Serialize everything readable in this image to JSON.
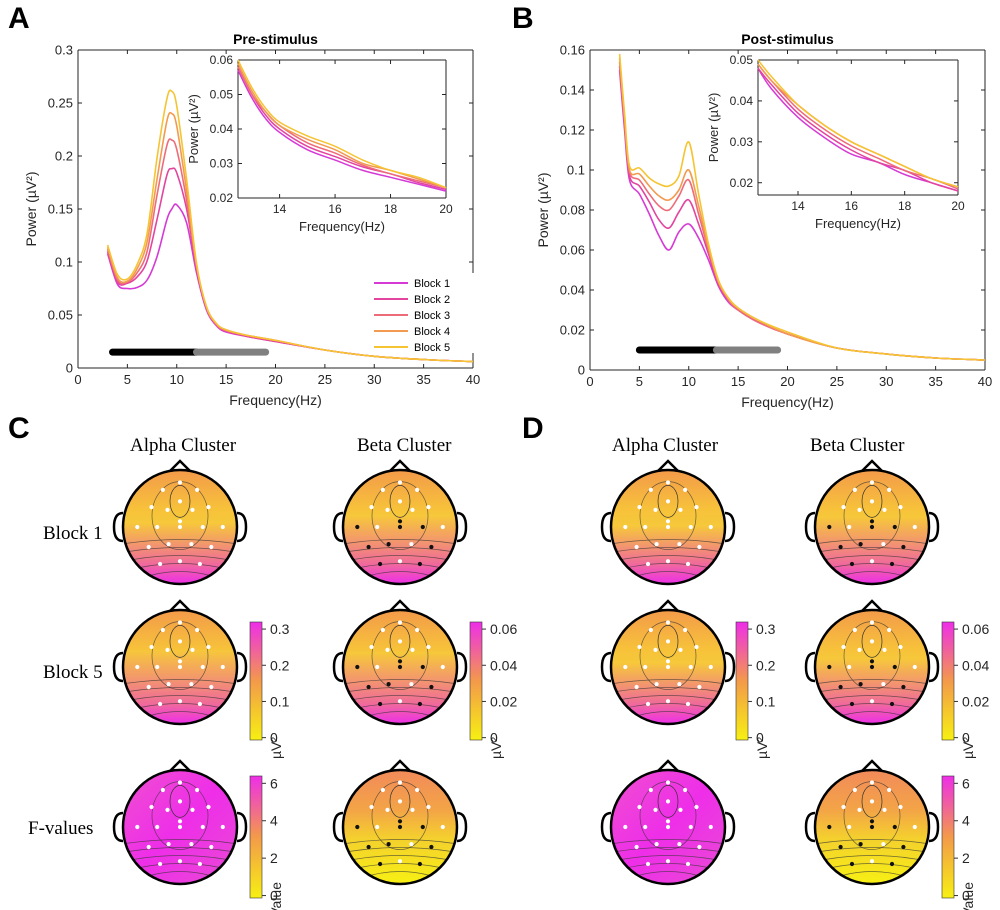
{
  "panels": {
    "a": "A",
    "b": "B",
    "c": "C",
    "d": "D"
  },
  "colors": {
    "block1": "#d63ad6",
    "block2": "#e3449e",
    "block3": "#ee6b7a",
    "block4": "#f29a4f",
    "block5": "#f5c433",
    "bar_alpha": "#000000",
    "bar_beta": "#808080",
    "map_low": "#f7f013",
    "map_mid": "#f39a4a",
    "map_high": "#ee2ee8"
  },
  "chart_data": [
    {
      "id": "A",
      "type": "line",
      "title": "Pre-stimulus",
      "xlabel": "Frequency(Hz)",
      "ylabel": "Power (µV²)",
      "xlim": [
        0,
        40
      ],
      "ylim": [
        0,
        0.3
      ],
      "x_ticks": [
        0,
        5,
        10,
        15,
        20,
        25,
        30,
        35,
        40
      ],
      "y_ticks": [
        0,
        0.05,
        0.1,
        0.15,
        0.2,
        0.25,
        0.3
      ],
      "y_tick_labels": [
        "0",
        "0.05",
        "0.1",
        "0.15",
        "0.2",
        "0.25",
        "0.3"
      ],
      "x": [
        3,
        4,
        5,
        6,
        7,
        8,
        9,
        9.5,
        10,
        11,
        12,
        13,
        14,
        15,
        17,
        20,
        25,
        30,
        35,
        40
      ],
      "series": [
        {
          "name": "Block 1",
          "values": [
            0.108,
            0.079,
            0.075,
            0.076,
            0.083,
            0.105,
            0.14,
            0.15,
            0.154,
            0.137,
            0.09,
            0.055,
            0.04,
            0.034,
            0.03,
            0.025,
            0.017,
            0.011,
            0.008,
            0.006
          ]
        },
        {
          "name": "Block 2",
          "values": [
            0.11,
            0.081,
            0.08,
            0.086,
            0.101,
            0.14,
            0.182,
            0.188,
            0.184,
            0.15,
            0.094,
            0.057,
            0.041,
            0.035,
            0.03,
            0.025,
            0.017,
            0.011,
            0.008,
            0.006
          ]
        },
        {
          "name": "Block 3",
          "values": [
            0.112,
            0.083,
            0.081,
            0.09,
            0.11,
            0.163,
            0.21,
            0.215,
            0.206,
            0.158,
            0.096,
            0.057,
            0.041,
            0.035,
            0.031,
            0.026,
            0.017,
            0.011,
            0.008,
            0.006
          ]
        },
        {
          "name": "Block 4",
          "values": [
            0.114,
            0.085,
            0.082,
            0.094,
            0.119,
            0.178,
            0.233,
            0.24,
            0.228,
            0.167,
            0.097,
            0.058,
            0.042,
            0.036,
            0.031,
            0.026,
            0.017,
            0.011,
            0.008,
            0.006
          ]
        },
        {
          "name": "Block 5",
          "values": [
            0.116,
            0.088,
            0.084,
            0.098,
            0.127,
            0.198,
            0.254,
            0.261,
            0.247,
            0.178,
            0.099,
            0.058,
            0.042,
            0.036,
            0.031,
            0.026,
            0.017,
            0.011,
            0.008,
            0.006
          ]
        }
      ],
      "bands": [
        {
          "name": "alpha",
          "from": 3.5,
          "to": 12
        },
        {
          "name": "beta",
          "from": 12,
          "to": 19
        }
      ],
      "band_y": 0.015,
      "legend": "bottom-right",
      "inset": {
        "xlabel": "Frequency(Hz)",
        "ylabel": "Power (µV²)",
        "xlim": [
          12.5,
          20
        ],
        "ylim": [
          0.02,
          0.06
        ],
        "x_ticks": [
          14,
          16,
          18,
          20
        ],
        "y_ticks": [
          0.02,
          0.03,
          0.04,
          0.05,
          0.06
        ],
        "y_tick_labels": [
          "0.02",
          "0.03",
          "0.04",
          "0.05",
          "0.06"
        ],
        "x": [
          12.5,
          13,
          13.5,
          14,
          15,
          16,
          17,
          18,
          19,
          20
        ],
        "series": [
          {
            "name": "Block 1",
            "values": [
              0.057,
              0.049,
              0.043,
              0.039,
              0.034,
              0.031,
              0.028,
              0.026,
              0.024,
              0.022
            ]
          },
          {
            "name": "Block 2",
            "values": [
              0.058,
              0.05,
              0.044,
              0.04,
              0.035,
              0.032,
              0.029,
              0.027,
              0.0245,
              0.0225
            ]
          },
          {
            "name": "Block 3",
            "values": [
              0.058,
              0.05,
              0.045,
              0.041,
              0.036,
              0.033,
              0.0295,
              0.027,
              0.025,
              0.023
            ]
          },
          {
            "name": "Block 4",
            "values": [
              0.059,
              0.051,
              0.045,
              0.041,
              0.037,
              0.034,
              0.03,
              0.028,
              0.0255,
              0.023
            ]
          },
          {
            "name": "Block 5",
            "values": [
              0.06,
              0.052,
              0.046,
              0.042,
              0.038,
              0.035,
              0.031,
              0.028,
              0.026,
              0.023
            ]
          }
        ]
      }
    },
    {
      "id": "B",
      "type": "line",
      "title": "Post-stimulus",
      "xlabel": "Frequency(Hz)",
      "ylabel": "Power (µV²)",
      "xlim": [
        0,
        40
      ],
      "ylim": [
        0,
        0.16
      ],
      "x_ticks": [
        0,
        5,
        10,
        15,
        20,
        25,
        30,
        35,
        40
      ],
      "y_ticks": [
        0,
        0.02,
        0.04,
        0.06,
        0.08,
        0.1,
        0.12,
        0.14,
        0.16
      ],
      "y_tick_labels": [
        "0",
        "0.02",
        "0.04",
        "0.06",
        "0.08",
        "0.1",
        "0.12",
        "0.14",
        "0.16"
      ],
      "x": [
        3,
        3.5,
        4,
        5,
        6,
        7,
        8,
        9,
        10,
        11,
        12,
        13,
        14,
        15,
        17,
        20,
        25,
        30,
        35,
        40
      ],
      "series": [
        {
          "name": "Block 1",
          "values": [
            0.15,
            0.12,
            0.095,
            0.088,
            0.078,
            0.067,
            0.06,
            0.069,
            0.073,
            0.066,
            0.055,
            0.042,
            0.034,
            0.03,
            0.024,
            0.018,
            0.011,
            0.008,
            0.006,
            0.005
          ]
        },
        {
          "name": "Block 2",
          "values": [
            0.152,
            0.122,
            0.097,
            0.092,
            0.084,
            0.075,
            0.071,
            0.079,
            0.085,
            0.073,
            0.058,
            0.043,
            0.035,
            0.03,
            0.024,
            0.018,
            0.011,
            0.008,
            0.006,
            0.005
          ]
        },
        {
          "name": "Block 3",
          "values": [
            0.154,
            0.124,
            0.099,
            0.095,
            0.088,
            0.082,
            0.08,
            0.087,
            0.095,
            0.078,
            0.06,
            0.044,
            0.035,
            0.03,
            0.024,
            0.018,
            0.011,
            0.008,
            0.006,
            0.005
          ]
        },
        {
          "name": "Block 4",
          "values": [
            0.156,
            0.126,
            0.1,
            0.098,
            0.092,
            0.087,
            0.085,
            0.09,
            0.1,
            0.082,
            0.061,
            0.044,
            0.036,
            0.031,
            0.025,
            0.018,
            0.011,
            0.008,
            0.006,
            0.005
          ]
        },
        {
          "name": "Block 5",
          "values": [
            0.158,
            0.128,
            0.102,
            0.101,
            0.096,
            0.093,
            0.092,
            0.097,
            0.114,
            0.088,
            0.063,
            0.045,
            0.036,
            0.031,
            0.025,
            0.019,
            0.011,
            0.008,
            0.006,
            0.005
          ]
        }
      ],
      "bands": [
        {
          "name": "alpha",
          "from": 5,
          "to": 12.8
        },
        {
          "name": "beta",
          "from": 12.8,
          "to": 19
        }
      ],
      "band_y": 0.01,
      "inset": {
        "xlabel": "Frequency(Hz)",
        "ylabel": "Power (µV²)",
        "xlim": [
          12.5,
          20
        ],
        "ylim": [
          0.017,
          0.05
        ],
        "x_ticks": [
          14,
          16,
          18,
          20
        ],
        "y_ticks": [
          0.02,
          0.03,
          0.04,
          0.05
        ],
        "y_tick_labels": [
          "0.02",
          "0.03",
          "0.04",
          "0.05"
        ],
        "x": [
          12.5,
          13,
          14,
          15,
          16,
          17,
          18,
          19,
          20
        ],
        "series": [
          {
            "name": "Block 1",
            "values": [
              0.048,
              0.043,
              0.036,
              0.031,
              0.027,
              0.025,
              0.022,
              0.02,
              0.018
            ]
          },
          {
            "name": "Block 2",
            "values": [
              0.048,
              0.044,
              0.037,
              0.032,
              0.028,
              0.025,
              0.023,
              0.02,
              0.018
            ]
          },
          {
            "name": "Block 3",
            "values": [
              0.049,
              0.045,
              0.038,
              0.033,
              0.029,
              0.026,
              0.023,
              0.021,
              0.0185
            ]
          },
          {
            "name": "Block 4",
            "values": [
              0.049,
              0.045,
              0.039,
              0.034,
              0.03,
              0.027,
              0.024,
              0.021,
              0.019
            ]
          },
          {
            "name": "Block 5",
            "values": [
              0.05,
              0.046,
              0.039,
              0.034,
              0.03,
              0.027,
              0.024,
              0.021,
              0.019
            ]
          }
        ]
      }
    }
  ],
  "topo": {
    "cluster_titles": [
      "Alpha Cluster",
      "Beta Cluster"
    ],
    "row_labels": [
      "Block 1",
      "Block 5",
      "F-values"
    ],
    "power_scale_units": "µV²",
    "fvalue_units": "F-Value",
    "alpha_colorbar_ticks": [
      "0",
      "0.1",
      "0.2",
      "0.3"
    ],
    "beta_colorbar_ticks": [
      "0",
      "0.02",
      "0.04",
      "0.06"
    ],
    "fvalue_colorbar_ticks": [
      "0",
      "2",
      "4",
      "6"
    ],
    "maps": [
      {
        "panel": "C",
        "row": 0,
        "col": 0,
        "hot": "bottom",
        "level": 0.35
      },
      {
        "panel": "C",
        "row": 0,
        "col": 1,
        "hot": "bottom",
        "level": 0.6
      },
      {
        "panel": "C",
        "row": 1,
        "col": 0,
        "hot": "bottom",
        "level": 0.85
      },
      {
        "panel": "C",
        "row": 1,
        "col": 1,
        "hot": "bottom",
        "level": 0.7
      },
      {
        "panel": "C",
        "row": 2,
        "col": 0,
        "hot": "all",
        "level": 0.95
      },
      {
        "panel": "C",
        "row": 2,
        "col": 1,
        "hot": "top",
        "level": 0.45
      },
      {
        "panel": "D",
        "row": 0,
        "col": 0,
        "hot": "bottom",
        "level": 0.25
      },
      {
        "panel": "D",
        "row": 0,
        "col": 1,
        "hot": "bottom",
        "level": 0.55
      },
      {
        "panel": "D",
        "row": 1,
        "col": 0,
        "hot": "bottom",
        "level": 0.35
      },
      {
        "panel": "D",
        "row": 1,
        "col": 1,
        "hot": "bottom",
        "level": 0.5
      },
      {
        "panel": "D",
        "row": 2,
        "col": 0,
        "hot": "all",
        "level": 0.95
      },
      {
        "panel": "D",
        "row": 2,
        "col": 1,
        "hot": "top",
        "level": 0.55
      }
    ]
  }
}
